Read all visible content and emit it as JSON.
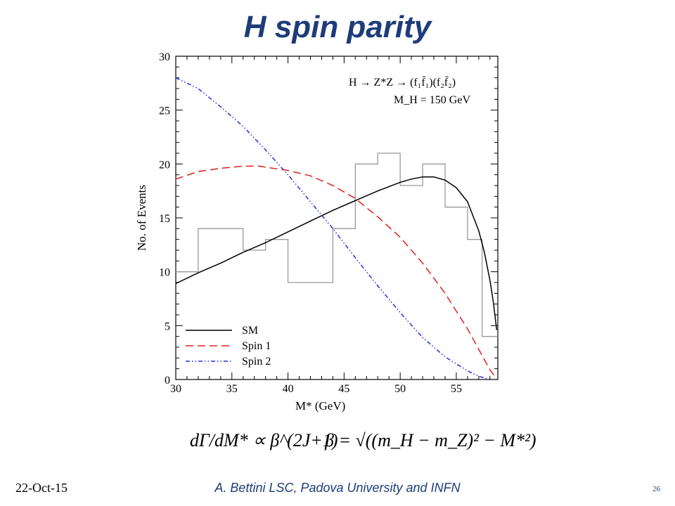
{
  "slide": {
    "title": "H spin parity",
    "footer_date": "22-Oct-15",
    "footer_author": "A. Bettini LSC, Padova University and INFN",
    "page_number": "26"
  },
  "annotation": {
    "process": "H → Z*Z → (f₁f̄₁)(f₂f̄₂)",
    "mass": "M_H = 150 GeV"
  },
  "equations": {
    "eq1": "dΓ/dM* ∝ β^(2J+1)",
    "eq2": "β = √((m_H − m_Z)² − M*²)"
  },
  "chart_data": {
    "type": "line",
    "xlabel": "M* (GeV)",
    "ylabel": "No. of Events",
    "xlim": [
      30,
      58.7
    ],
    "ylim": [
      0,
      30
    ],
    "xticks": [
      30,
      35,
      40,
      45,
      50,
      55
    ],
    "yticks": [
      0,
      5,
      10,
      15,
      20,
      25,
      30
    ],
    "grid": false,
    "legend_position": "bottom-left",
    "histogram": {
      "edges": [
        30,
        32,
        36,
        38,
        40,
        44,
        46,
        48,
        50,
        52,
        54,
        56,
        57.3,
        58.7
      ],
      "values": [
        10,
        14,
        12,
        13,
        9,
        14,
        20,
        21,
        18,
        20,
        16,
        13,
        4
      ],
      "color": "#999999"
    },
    "series": [
      {
        "name": "SM",
        "color": "#000000",
        "dash": "solid",
        "x": [
          30,
          32,
          34,
          36,
          38,
          40,
          42,
          44,
          46,
          48,
          50,
          51,
          52,
          53,
          54,
          55,
          56,
          57,
          57.5,
          58,
          58.3,
          58.6
        ],
        "y": [
          8.9,
          9.9,
          10.8,
          11.8,
          12.7,
          13.7,
          14.7,
          15.7,
          16.6,
          17.5,
          18.3,
          18.6,
          18.8,
          18.8,
          18.5,
          17.8,
          16.5,
          13.8,
          11.8,
          9.2,
          7.2,
          4.6
        ]
      },
      {
        "name": "Spin 1",
        "color": "#e02020",
        "dash": "dashed",
        "x": [
          30,
          32,
          34,
          36,
          37.5,
          38,
          40,
          42,
          44,
          46,
          48,
          50,
          52,
          54,
          56,
          57,
          58,
          58.5
        ],
        "y": [
          18.6,
          19.3,
          19.6,
          19.8,
          19.8,
          19.7,
          19.4,
          18.9,
          18,
          16.8,
          15.1,
          13.2,
          10.8,
          8,
          4.7,
          2.8,
          0.9,
          0.2
        ]
      },
      {
        "name": "Spin 2",
        "color": "#2030e0",
        "dash": "dash-dot-dot",
        "x": [
          30,
          32,
          34,
          36,
          38,
          40,
          42,
          44,
          46,
          48,
          50,
          52,
          54,
          56,
          57,
          58
        ],
        "y": [
          28,
          27,
          25.3,
          23.5,
          21.3,
          19,
          16.5,
          14,
          11.3,
          8.7,
          6.2,
          3.9,
          2.1,
          0.8,
          0.3,
          0
        ]
      }
    ]
  }
}
